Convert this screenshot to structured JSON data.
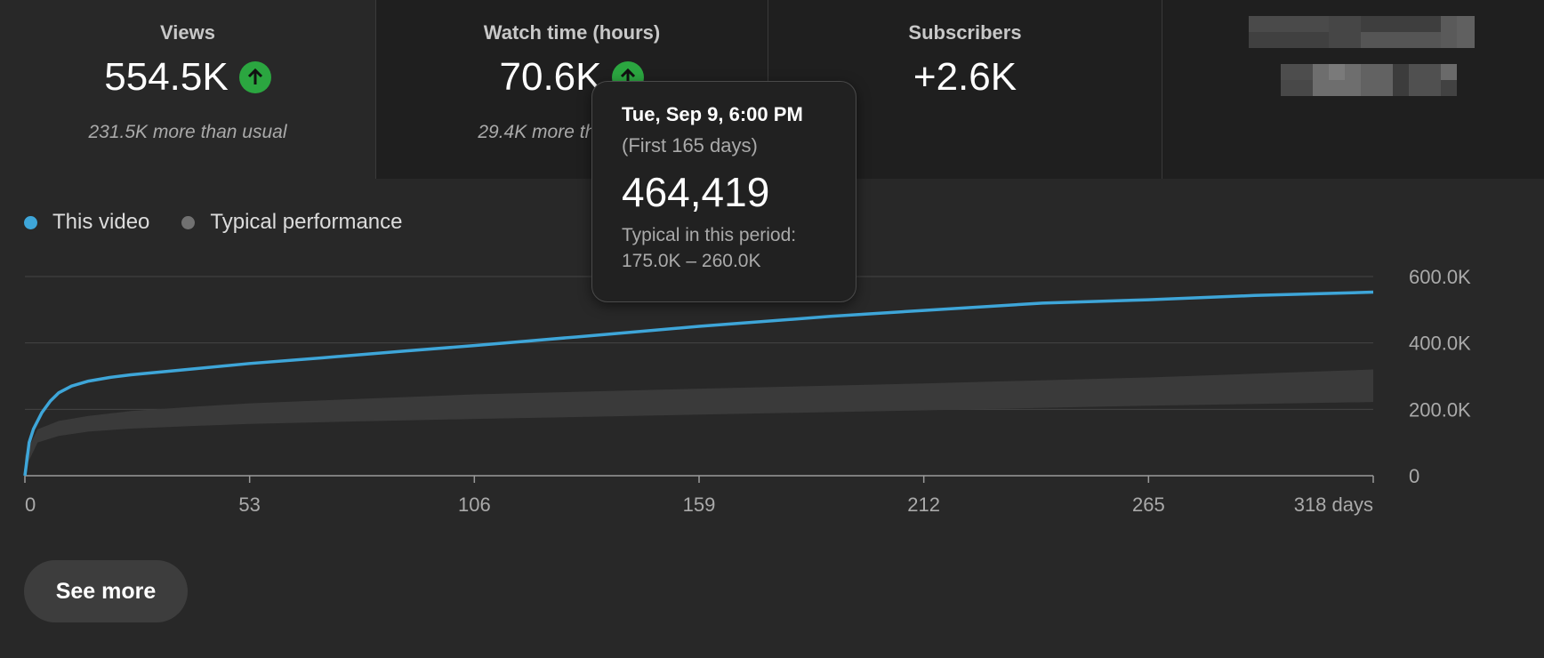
{
  "cards": [
    {
      "label": "Views",
      "value": "554.5K",
      "sub": "231.5K more than usual",
      "trend": "up"
    },
    {
      "label": "Watch time (hours)",
      "value": "70.6K",
      "sub": "29.4K more than usual",
      "trend": "up"
    },
    {
      "label": "Subscribers",
      "value": "+2.6K",
      "sub": "",
      "trend": ""
    }
  ],
  "legend": {
    "this_video": "This video",
    "typical": "Typical performance"
  },
  "colors": {
    "this_video": "#3ea6d9",
    "typical_dot": "#717171",
    "band": "#3a3a3a",
    "up": "#2ba640"
  },
  "tooltip": {
    "date": "Tue, Sep 9, 6:00 PM",
    "range": "(First 165 days)",
    "value": "464,419",
    "typical_label": "Typical in this period:",
    "typical_range": "175.0K – 260.0K"
  },
  "chart_data": {
    "type": "line",
    "x_unit": "days",
    "xlim": [
      0,
      318
    ],
    "ylim": [
      0,
      600000
    ],
    "x_ticks": [
      "0",
      "53",
      "106",
      "159",
      "212",
      "265",
      "318 days"
    ],
    "y_ticks": [
      "600.0K",
      "400.0K",
      "200.0K",
      "0"
    ],
    "series": [
      {
        "name": "This video",
        "points": [
          [
            0,
            0
          ],
          [
            1,
            100000
          ],
          [
            2,
            140000
          ],
          [
            4,
            190000
          ],
          [
            6,
            225000
          ],
          [
            8,
            250000
          ],
          [
            11,
            270000
          ],
          [
            15,
            285000
          ],
          [
            20,
            296000
          ],
          [
            25,
            304000
          ],
          [
            30,
            310000
          ],
          [
            40,
            322000
          ],
          [
            53,
            338000
          ],
          [
            70,
            355000
          ],
          [
            90,
            376000
          ],
          [
            106,
            392000
          ],
          [
            130,
            418000
          ],
          [
            159,
            450000
          ],
          [
            190,
            480000
          ],
          [
            212,
            498000
          ],
          [
            240,
            520000
          ],
          [
            265,
            530000
          ],
          [
            290,
            543000
          ],
          [
            318,
            553000
          ]
        ]
      }
    ],
    "typical_band": {
      "name": "Typical performance",
      "points": [
        [
          0,
          20000,
          60000
        ],
        [
          3,
          100000,
          140000
        ],
        [
          8,
          120000,
          165000
        ],
        [
          15,
          133000,
          180000
        ],
        [
          25,
          142000,
          195000
        ],
        [
          40,
          150000,
          208000
        ],
        [
          53,
          156000,
          218000
        ],
        [
          80,
          164000,
          232000
        ],
        [
          106,
          171000,
          245000
        ],
        [
          159,
          184000,
          262000
        ],
        [
          212,
          197000,
          278000
        ],
        [
          265,
          211000,
          296000
        ],
        [
          318,
          222000,
          320000
        ]
      ]
    }
  },
  "see_more": "See more"
}
